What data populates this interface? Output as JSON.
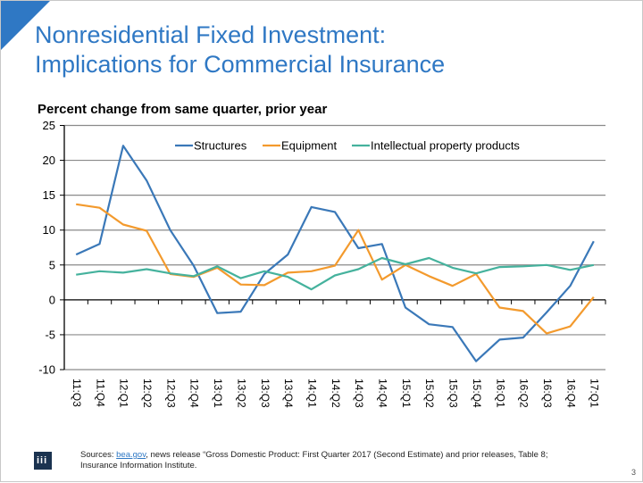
{
  "slide": {
    "title_line1": "Nonresidential Fixed Investment:",
    "title_line2": "Implications for Commercial Insurance",
    "accent_color": "#2f78c4",
    "page_number": "3"
  },
  "footer": {
    "logo_text": "iii",
    "sources_prefix": "Sources: ",
    "sources_link": "bea.gov",
    "sources_rest": ", news release “Gross Domestic Product: First Quarter 2017 (Second Estimate) and prior releases, Table 8;",
    "sources_line2": "Insurance Information Institute."
  },
  "chart_data": {
    "type": "line",
    "title": "Percent change from same quarter, prior year",
    "xlabel": "",
    "ylabel": "",
    "ylim": [
      -10,
      25
    ],
    "yticks": [
      25,
      20,
      15,
      10,
      5,
      0,
      -5,
      -10
    ],
    "grid": true,
    "legend_position": "top",
    "categories": [
      "11:Q3",
      "11:Q4",
      "12:Q1",
      "12:Q2",
      "12:Q3",
      "12:Q4",
      "13:Q1",
      "13:Q2",
      "13:Q3",
      "13:Q4",
      "14:Q1",
      "14:Q2",
      "14:Q3",
      "14:Q4",
      "15:Q1",
      "15:Q2",
      "15:Q3",
      "15:Q4",
      "16:Q1",
      "16:Q2",
      "16:Q3",
      "16:Q4",
      "17:Q1"
    ],
    "series": [
      {
        "name": "Structures",
        "color": "#3a78b8",
        "values": [
          6.5,
          8.0,
          22.1,
          17.1,
          10.0,
          4.9,
          -1.9,
          -1.7,
          3.7,
          6.5,
          13.3,
          12.6,
          7.4,
          8.0,
          -1.1,
          -3.5,
          -3.9,
          -8.8,
          -5.7,
          -5.4,
          -1.8,
          2.0,
          8.4
        ]
      },
      {
        "name": "Equipment",
        "color": "#f39a2d",
        "values": [
          13.7,
          13.2,
          10.8,
          9.9,
          3.7,
          3.3,
          4.6,
          2.2,
          2.1,
          3.9,
          4.1,
          4.9,
          10.0,
          2.9,
          5.0,
          3.4,
          2.0,
          3.7,
          -1.1,
          -1.6,
          -4.8,
          -3.8,
          0.4
        ]
      },
      {
        "name": "Intellectual property products",
        "color": "#45b29d",
        "values": [
          3.6,
          4.1,
          3.9,
          4.4,
          3.8,
          3.4,
          4.8,
          3.1,
          4.1,
          3.3,
          1.5,
          3.5,
          4.4,
          6.0,
          5.1,
          6.0,
          4.6,
          3.8,
          4.7,
          4.8,
          5.0,
          4.3,
          5.0
        ]
      }
    ]
  }
}
